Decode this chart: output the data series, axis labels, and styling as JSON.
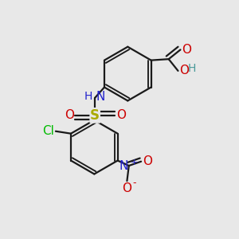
{
  "bg_color": "#e8e8e8",
  "bond_color": "#1a1a1a",
  "bond_width": 1.6,
  "atom_colors": {
    "C": "#1a1a1a",
    "H": "#4a9a9a",
    "O": "#cc0000",
    "N": "#2222cc",
    "S": "#aaaa00",
    "Cl": "#00bb00"
  }
}
